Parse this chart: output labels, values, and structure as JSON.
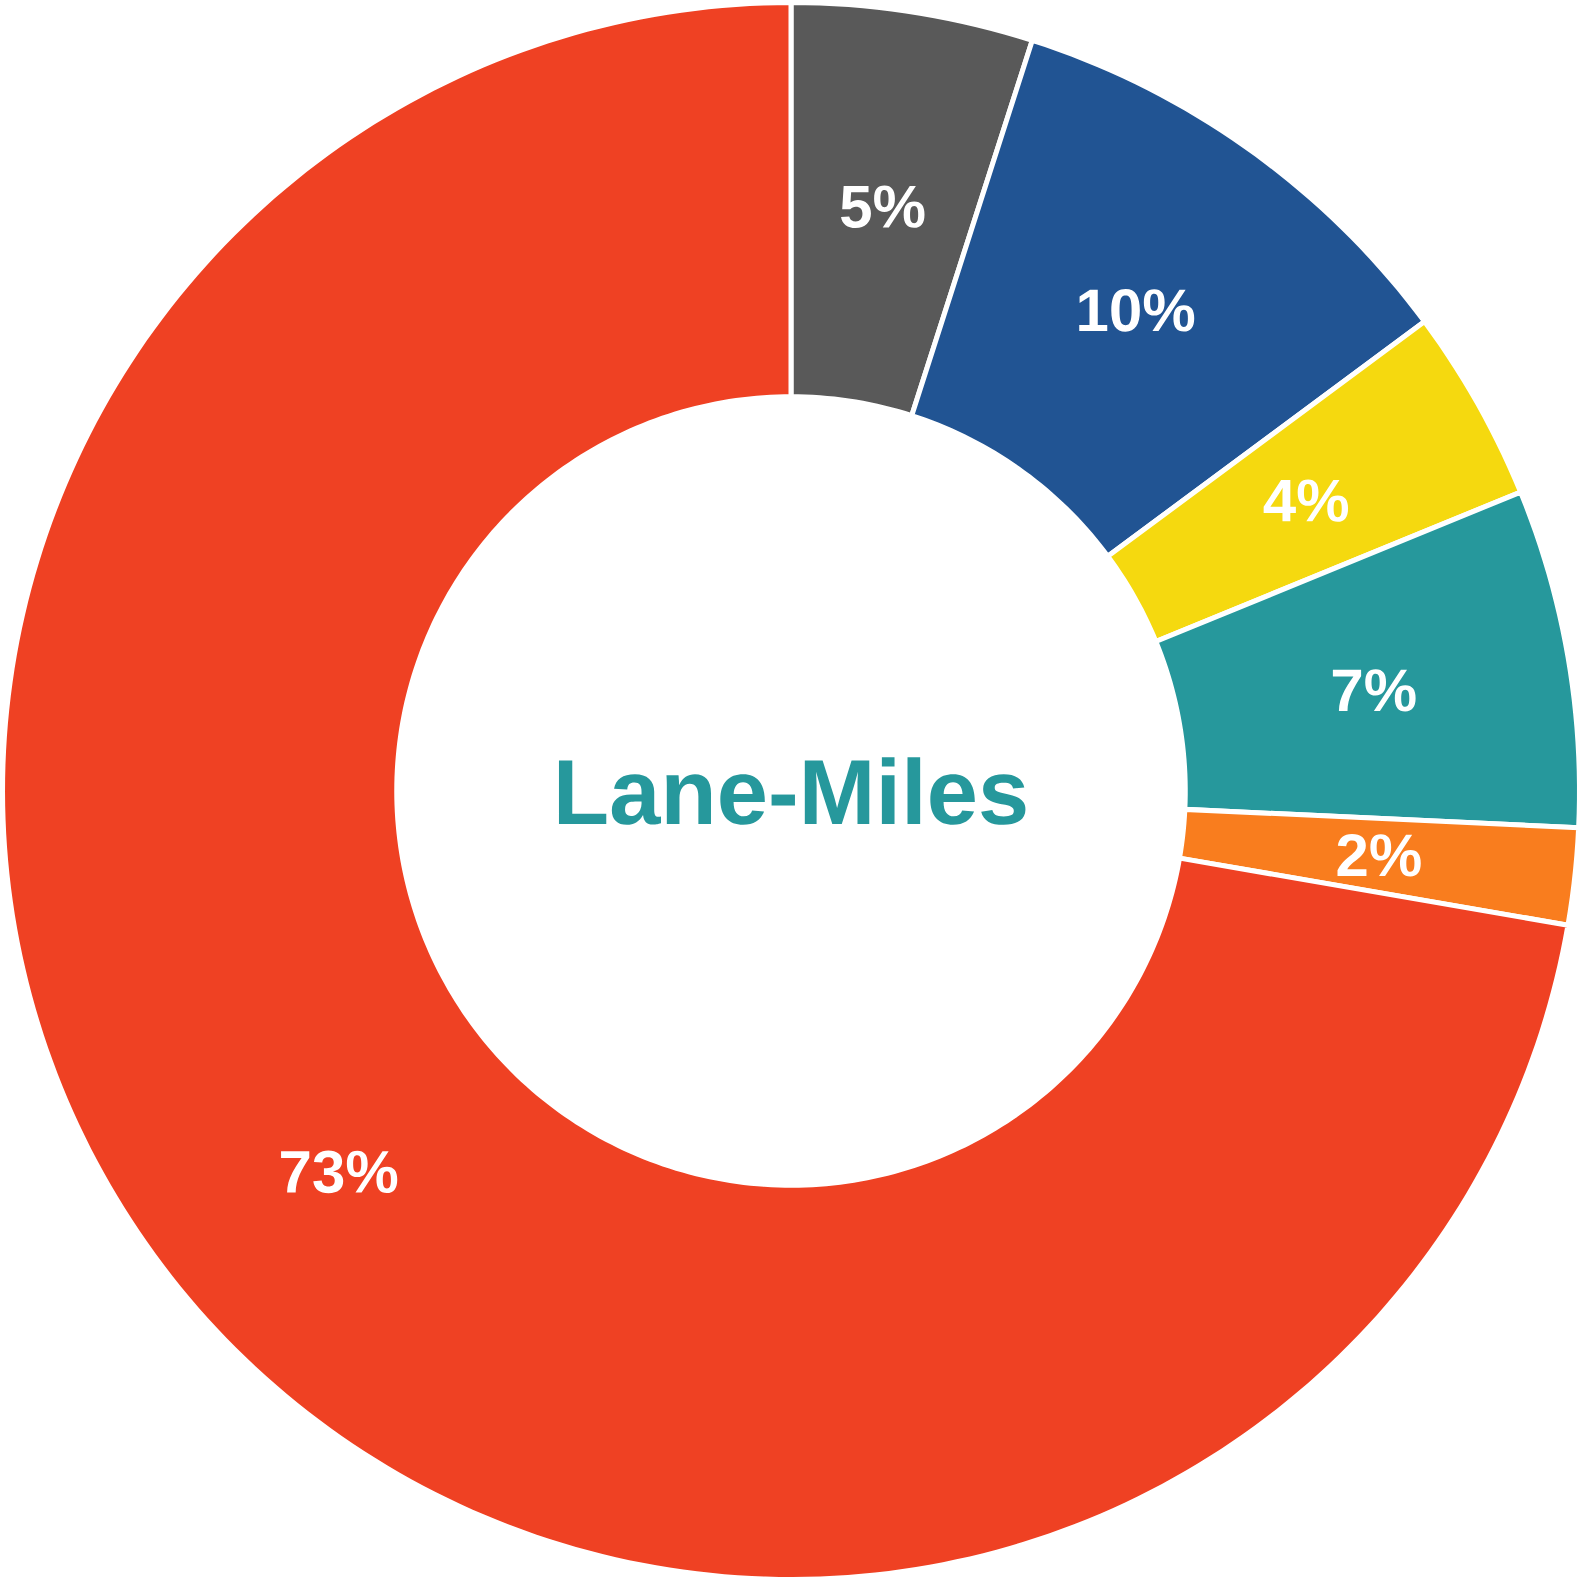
{
  "chart_data": {
    "type": "donut",
    "title": "Lane-Miles",
    "categories": [
      null,
      null,
      null,
      null,
      null,
      null
    ],
    "values": [
      5,
      10,
      4,
      7,
      2,
      73
    ],
    "colors": [
      "#595959",
      "#215493",
      "#f5d90f",
      "#26989c",
      "#f97d1e",
      "#ef4123"
    ],
    "value_labels": [
      "5%",
      "10%",
      "4%",
      "7%",
      "2%",
      "73%"
    ]
  }
}
